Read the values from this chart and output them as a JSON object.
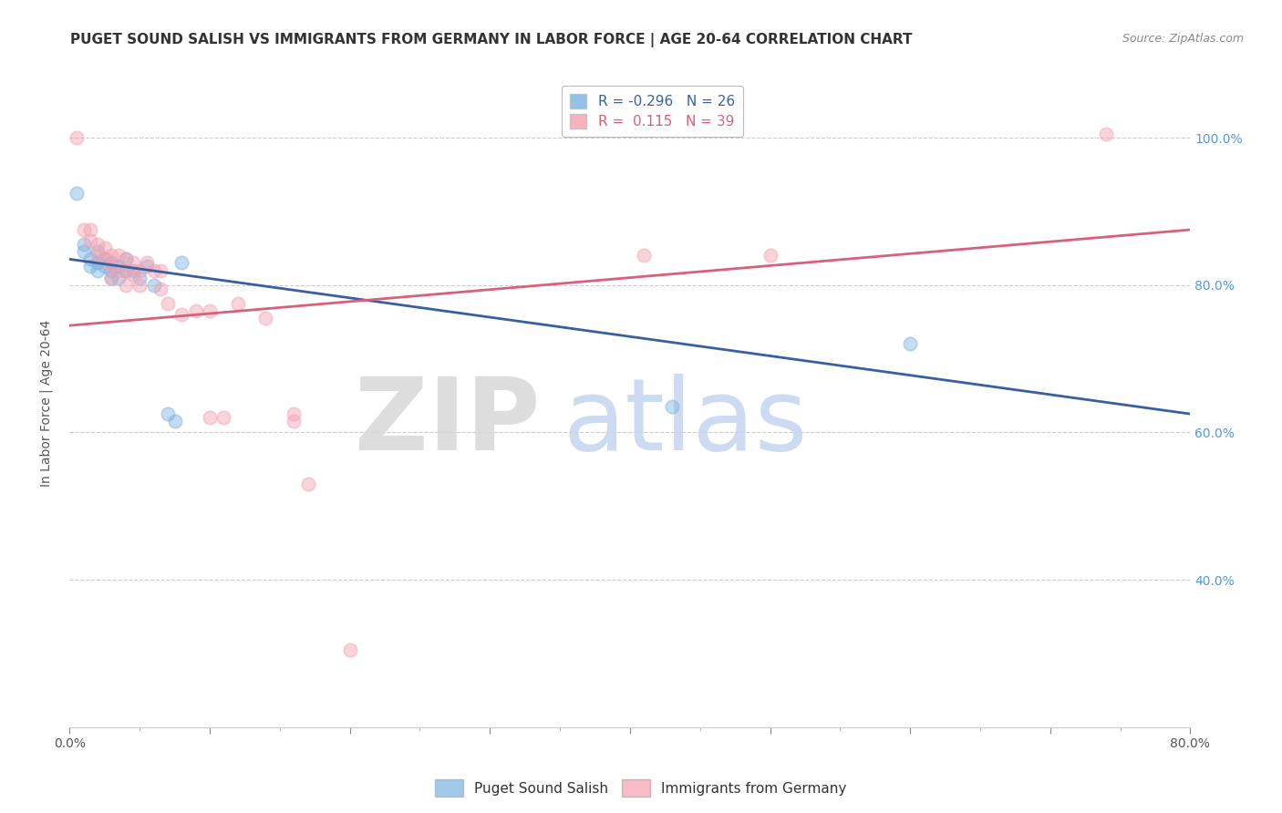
{
  "title": "PUGET SOUND SALISH VS IMMIGRANTS FROM GERMANY IN LABOR FORCE | AGE 20-64 CORRELATION CHART",
  "source": "Source: ZipAtlas.com",
  "ylabel": "In Labor Force | Age 20-64",
  "xlim": [
    0.0,
    0.8
  ],
  "ylim": [
    0.2,
    1.08
  ],
  "ytick_vals": [
    0.4,
    0.6,
    0.8,
    1.0
  ],
  "xtick_vals": [
    0.0,
    0.1,
    0.2,
    0.3,
    0.4,
    0.5,
    0.6,
    0.7,
    0.8
  ],
  "xtick_major_labels": [
    "0.0%",
    "",
    "",
    "",
    "",
    "",
    "",
    "",
    "80.0%"
  ],
  "r_blue": -0.296,
  "n_blue": 26,
  "r_pink": 0.115,
  "n_pink": 39,
  "blue_scatter_x": [
    0.005,
    0.01,
    0.01,
    0.015,
    0.015,
    0.02,
    0.02,
    0.02,
    0.025,
    0.025,
    0.03,
    0.03,
    0.03,
    0.035,
    0.035,
    0.04,
    0.04,
    0.045,
    0.05,
    0.055,
    0.06,
    0.07,
    0.075,
    0.08,
    0.43,
    0.6
  ],
  "blue_scatter_y": [
    0.925,
    0.845,
    0.855,
    0.835,
    0.825,
    0.845,
    0.83,
    0.82,
    0.835,
    0.825,
    0.83,
    0.82,
    0.81,
    0.825,
    0.81,
    0.835,
    0.82,
    0.82,
    0.81,
    0.825,
    0.8,
    0.625,
    0.615,
    0.83,
    0.635,
    0.72
  ],
  "pink_scatter_x": [
    0.005,
    0.01,
    0.015,
    0.015,
    0.02,
    0.02,
    0.025,
    0.025,
    0.03,
    0.03,
    0.03,
    0.035,
    0.035,
    0.04,
    0.04,
    0.04,
    0.045,
    0.045,
    0.05,
    0.05,
    0.055,
    0.06,
    0.065,
    0.065,
    0.07,
    0.08,
    0.09,
    0.1,
    0.1,
    0.11,
    0.12,
    0.14,
    0.16,
    0.16,
    0.17,
    0.2,
    0.41,
    0.5,
    0.74
  ],
  "pink_scatter_y": [
    1.0,
    0.875,
    0.875,
    0.86,
    0.855,
    0.84,
    0.85,
    0.835,
    0.84,
    0.825,
    0.81,
    0.84,
    0.82,
    0.835,
    0.82,
    0.8,
    0.83,
    0.815,
    0.82,
    0.8,
    0.83,
    0.82,
    0.82,
    0.795,
    0.775,
    0.76,
    0.765,
    0.765,
    0.62,
    0.62,
    0.775,
    0.755,
    0.625,
    0.615,
    0.53,
    0.305,
    0.84,
    0.84,
    1.005
  ],
  "blue_line_x": [
    0.0,
    0.8
  ],
  "blue_line_y": [
    0.835,
    0.625
  ],
  "pink_line_x": [
    0.0,
    0.8
  ],
  "pink_line_y": [
    0.745,
    0.875
  ],
  "bg_color": "#ffffff",
  "scatter_size": 110,
  "scatter_alpha": 0.45,
  "blue_color": "#7ab3e0",
  "pink_color": "#f4a0b0",
  "line_blue_color": "#3a5fa0",
  "line_pink_color": "#d9607a",
  "grid_color": "#cccccc",
  "title_fontsize": 11,
  "axis_fontsize": 10,
  "tick_fontsize": 10,
  "right_tick_color": "#5599dd",
  "legend_label_blue": "Puget Sound Salish",
  "legend_label_pink": "Immigrants from Germany"
}
